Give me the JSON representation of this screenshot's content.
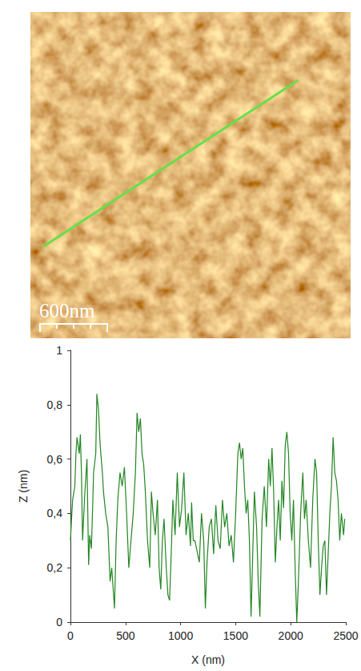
{
  "chart_data": {
    "type": "line",
    "x_label": "X (nm)",
    "y_label": "Z (nm)",
    "color": "#238523",
    "grid": false,
    "xlim": [
      0,
      2500
    ],
    "xticks": [
      0,
      500,
      1000,
      1500,
      2000,
      2500
    ],
    "ylim": [
      0,
      1
    ],
    "yticks": [
      0,
      {
        "value": 0.2,
        "label": "0,2"
      },
      {
        "value": 0.4,
        "label": "0,4"
      },
      {
        "value": 0.6,
        "label": "0,6"
      },
      {
        "value": 0.8,
        "label": "0,8"
      },
      1
    ],
    "x": [
      0,
      10,
      20,
      40,
      50,
      60,
      80,
      90,
      100,
      110,
      130,
      150,
      165,
      175,
      190,
      200,
      210,
      230,
      240,
      255,
      270,
      290,
      300,
      320,
      340,
      360,
      375,
      390,
      400,
      415,
      430,
      450,
      470,
      490,
      510,
      530,
      550,
      570,
      590,
      605,
      620,
      635,
      650,
      665,
      680,
      700,
      720,
      735,
      750,
      770,
      790,
      805,
      820,
      835,
      850,
      870,
      885,
      900,
      915,
      930,
      950,
      970,
      990,
      1010,
      1030,
      1050,
      1070,
      1090,
      1100,
      1115,
      1130,
      1150,
      1170,
      1190,
      1210,
      1225,
      1240,
      1260,
      1280,
      1300,
      1320,
      1340,
      1360,
      1380,
      1400,
      1420,
      1440,
      1460,
      1480,
      1500,
      1520,
      1535,
      1550,
      1565,
      1580,
      1595,
      1610,
      1625,
      1640,
      1655,
      1670,
      1690,
      1705,
      1720,
      1740,
      1760,
      1780,
      1800,
      1815,
      1830,
      1845,
      1860,
      1875,
      1890,
      1905,
      1920,
      1935,
      1950,
      1965,
      1980,
      1995,
      2010,
      2025,
      2040,
      2055,
      2070,
      2090,
      2110,
      2125,
      2140,
      2160,
      2180,
      2200,
      2220,
      2235,
      2250,
      2265,
      2280,
      2295,
      2310,
      2325,
      2340,
      2355,
      2370,
      2385,
      2400,
      2415,
      2430,
      2445,
      2460,
      2480,
      2490
    ],
    "values": [
      0.3,
      0.38,
      0.45,
      0.5,
      0.62,
      0.68,
      0.62,
      0.69,
      0.55,
      0.3,
      0.47,
      0.6,
      0.21,
      0.32,
      0.27,
      0.4,
      0.55,
      0.62,
      0.84,
      0.78,
      0.65,
      0.55,
      0.48,
      0.4,
      0.35,
      0.15,
      0.2,
      0.11,
      0.05,
      0.3,
      0.45,
      0.55,
      0.5,
      0.57,
      0.4,
      0.2,
      0.3,
      0.4,
      0.55,
      0.77,
      0.7,
      0.75,
      0.62,
      0.58,
      0.48,
      0.3,
      0.2,
      0.48,
      0.4,
      0.32,
      0.45,
      0.2,
      0.12,
      0.3,
      0.38,
      0.2,
      0.1,
      0.08,
      0.25,
      0.45,
      0.32,
      0.55,
      0.35,
      0.42,
      0.55,
      0.32,
      0.4,
      0.28,
      0.44,
      0.3,
      0.3,
      0.26,
      0.22,
      0.4,
      0.3,
      0.05,
      0.22,
      0.35,
      0.38,
      0.25,
      0.43,
      0.3,
      0.27,
      0.45,
      0.35,
      0.4,
      0.28,
      0.32,
      0.22,
      0.4,
      0.62,
      0.66,
      0.6,
      0.64,
      0.5,
      0.4,
      0.45,
      0.3,
      0.02,
      0.25,
      0.48,
      0.35,
      0.15,
      0.02,
      0.38,
      0.5,
      0.35,
      0.6,
      0.5,
      0.64,
      0.48,
      0.22,
      0.35,
      0.45,
      0.3,
      0.52,
      0.42,
      0.65,
      0.7,
      0.62,
      0.4,
      0.3,
      0.45,
      0.2,
      0.0,
      0.15,
      0.4,
      0.55,
      0.38,
      0.45,
      0.3,
      0.2,
      0.45,
      0.6,
      0.55,
      0.3,
      0.1,
      0.2,
      0.28,
      0.3,
      0.1,
      0.25,
      0.4,
      0.5,
      0.68,
      0.55,
      0.52,
      0.45,
      0.3,
      0.4,
      0.32,
      0.38
    ]
  },
  "afm_image": {
    "scale_bar": "600nm"
  }
}
